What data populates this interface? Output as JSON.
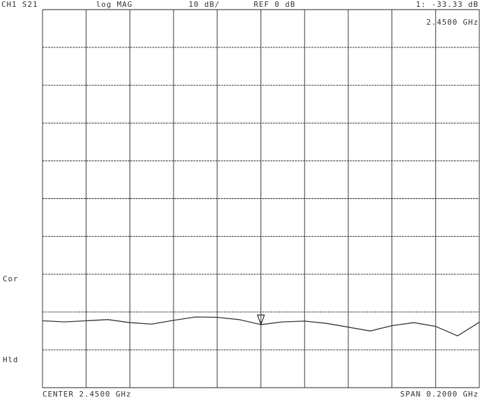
{
  "chart_data": {
    "type": "line",
    "channel": "CH1 S21",
    "format": "log MAG",
    "scale": "10 dB/",
    "reference": "REF 0 dB",
    "marker_readout": "1: -33.33 dB",
    "marker_freq": "2.4500 GHz",
    "status": [
      "Cor",
      "Hld"
    ],
    "center": "CENTER 2.4500 GHz",
    "span": "SPAN 0.2000 GHz",
    "x": [
      2.35,
      2.36,
      2.37,
      2.38,
      2.39,
      2.4,
      2.41,
      2.42,
      2.43,
      2.44,
      2.45,
      2.46,
      2.47,
      2.48,
      2.49,
      2.5,
      2.51,
      2.52,
      2.53,
      2.54,
      2.55
    ],
    "values": [
      -32.3,
      -32.6,
      -32.3,
      -32.0,
      -32.8,
      -33.2,
      -32.2,
      -31.3,
      -31.4,
      -32.0,
      -33.33,
      -32.6,
      -32.4,
      -33.0,
      -34.0,
      -35.0,
      -33.6,
      -32.8,
      -33.8,
      -36.3,
      -32.7
    ],
    "color": "#333333",
    "marker_index": 10,
    "xlim": [
      2.35,
      2.55
    ],
    "xticks": [
      2.35,
      2.37,
      2.39,
      2.41,
      2.43,
      2.45,
      2.47,
      2.49,
      2.51,
      2.53,
      2.55
    ],
    "ylim": [
      -50,
      50
    ],
    "yticks": [
      -50,
      -40,
      -30,
      -20,
      -10,
      0,
      10,
      20,
      30,
      40,
      50
    ],
    "grid": true
  }
}
